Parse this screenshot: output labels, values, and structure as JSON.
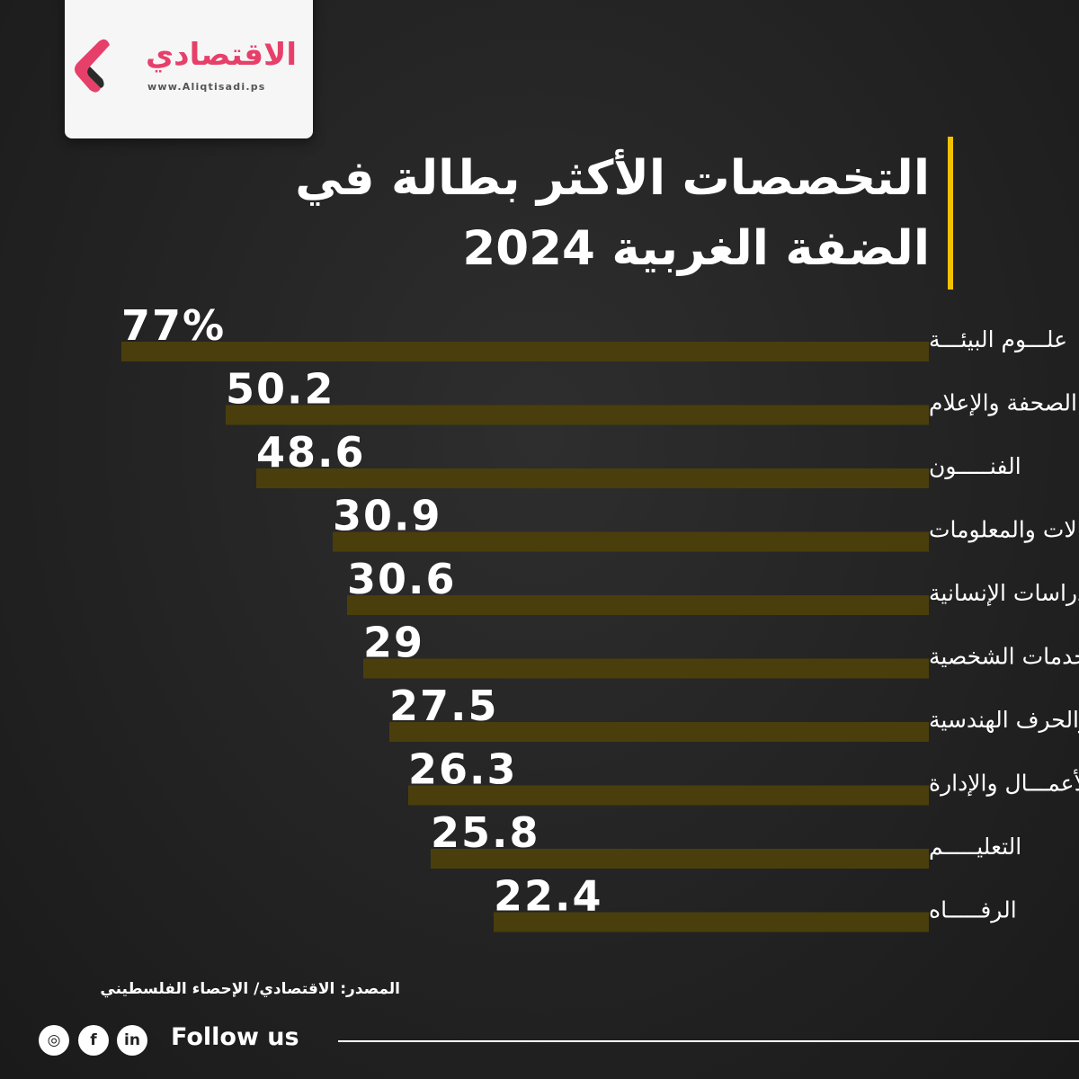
{
  "brand": {
    "logo_text": "الاقتصادي",
    "url": "www.Aliqtisadi.ps",
    "primary_color": "#e6406a"
  },
  "title": {
    "line1": "التخصصات الأكثر بطالة في",
    "line2": "الضفة الغربية 2024",
    "accent_color": "#f2c200"
  },
  "chart_data": {
    "type": "bar",
    "orientation": "horizontal",
    "direction": "right-to-left",
    "categories": [
      "علـــوم البيئـــة",
      "الصحفة والإعلام",
      "الفنـــــون",
      "تكنولوجيا الاتصالات والمعلومات",
      "الدراسات الإنسانية",
      "الخدمات الشخصية",
      "الهندسة والحرف الهندسية",
      "الأعمـــال والإدارة",
      "التعليـــــم",
      "الرفـــــاه"
    ],
    "values": [
      77,
      50.2,
      48.6,
      30.9,
      30.6,
      29,
      27.5,
      26.3,
      25.8,
      22.4
    ],
    "value_labels": [
      "77%",
      "50.2",
      "48.6",
      "30.9",
      "30.6",
      "29",
      "27.5",
      "26.3",
      "25.8",
      "22.4"
    ],
    "bar_color": "#4a3e0c",
    "grid": false,
    "legend": "none"
  },
  "footer": {
    "source": "المصدر: الاقتصادي/ الإحصاء الفلسطيني",
    "follow": "Follow us",
    "social_icons": [
      "instagram-icon",
      "facebook-icon",
      "linkedin-icon"
    ],
    "social_glyphs": [
      "◎",
      "f",
      "in"
    ]
  }
}
